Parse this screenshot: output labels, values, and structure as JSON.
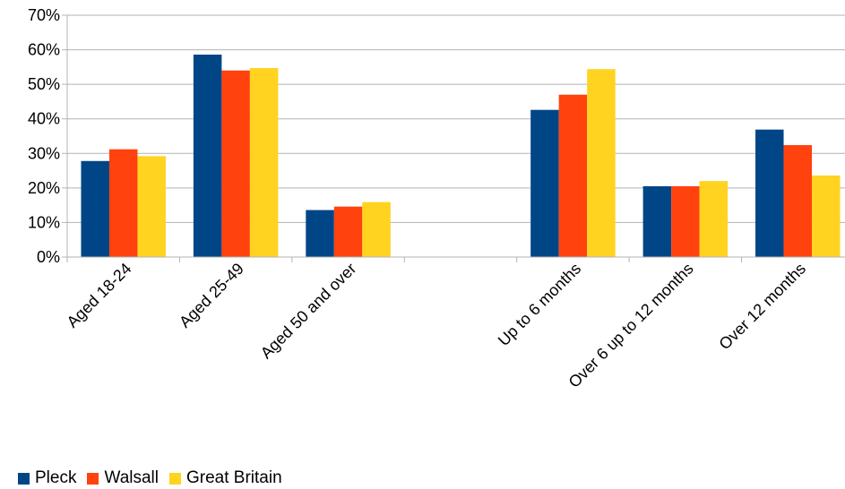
{
  "chart_data": {
    "type": "bar",
    "categories": [
      "Aged 18-24",
      "Aged 25-49",
      "Aged 50 and over",
      "",
      "Up to 6 months",
      "Over 6 up to 12 months",
      "Over 12 months"
    ],
    "series": [
      {
        "name": "Pleck",
        "color": "#004586",
        "values": [
          27.8,
          58.6,
          13.6,
          null,
          42.6,
          20.5,
          36.9
        ]
      },
      {
        "name": "Walsall",
        "color": "#ff420e",
        "values": [
          31.2,
          54.0,
          14.6,
          null,
          47.0,
          20.5,
          32.4
        ]
      },
      {
        "name": "Great Britain",
        "color": "#ffd320",
        "values": [
          29.2,
          54.7,
          15.9,
          null,
          54.4,
          22.0,
          23.6
        ]
      }
    ],
    "y_ticks": [
      "0%",
      "10%",
      "20%",
      "30%",
      "40%",
      "50%",
      "60%",
      "70%"
    ],
    "ylim": [
      0,
      70
    ],
    "grid": true,
    "legend_position": "bottom-left",
    "title": "",
    "xlabel": "",
    "ylabel": ""
  }
}
